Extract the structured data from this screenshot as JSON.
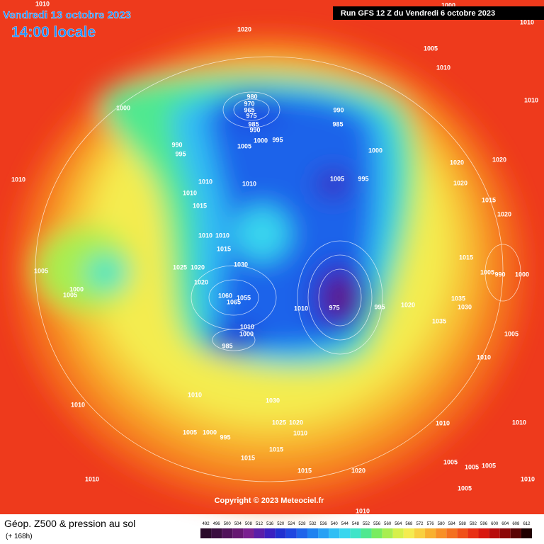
{
  "header": {
    "date": "Vendredi 13 octobre 2023",
    "time": "14:00 locale",
    "run": "Run GFS 12 Z du Vendredi 6 octobre 2023"
  },
  "copyright": "Copyright © 2023 Meteociel.fr",
  "footer": {
    "title": "Géop. Z500 & pression au sol",
    "lead": "(+ 168h)"
  },
  "colorbar": {
    "levels": [
      492,
      496,
      500,
      504,
      508,
      512,
      516,
      520,
      524,
      528,
      532,
      536,
      540,
      544,
      548,
      552,
      556,
      560,
      564,
      568,
      572,
      576,
      580,
      584,
      588,
      592,
      596,
      600,
      604,
      608,
      612
    ],
    "colors": [
      "#2a0a2a",
      "#3a0d3f",
      "#50125a",
      "#661872",
      "#7a2090",
      "#5a1ea8",
      "#3a20c0",
      "#2030d0",
      "#1e46e0",
      "#1e64ea",
      "#1e82f0",
      "#28a0f4",
      "#30bef4",
      "#38d6ee",
      "#40e4c8",
      "#50e890",
      "#78ec60",
      "#a8ee50",
      "#d6f04a",
      "#f4ec50",
      "#f8d040",
      "#f8b030",
      "#f89028",
      "#f47020",
      "#f05018",
      "#e83014",
      "#d81810",
      "#b80c0c",
      "#8c0808",
      "#5a0404",
      "#200000"
    ]
  },
  "isobar_labels": [
    1000,
    1020,
    1005,
    1010,
    1000,
    1010,
    980,
    970,
    965,
    975,
    985,
    990,
    1000,
    995,
    990,
    985,
    1005,
    1000,
    990,
    995,
    1010,
    1010,
    1010,
    1005,
    995,
    1020,
    1020,
    1020,
    1010,
    1015,
    1015,
    1020,
    1010,
    1010,
    1015,
    1015,
    1005,
    1025,
    1020,
    1030,
    1020,
    1005,
    990,
    1000,
    1000,
    1005,
    1055,
    1065,
    1060,
    1010,
    975,
    995,
    1020,
    1035,
    1030,
    1035,
    1010,
    1000,
    985,
    1005,
    1010,
    1010,
    1010,
    1030,
    1025,
    1020,
    1010,
    1005,
    1000,
    995,
    1010,
    1010,
    1015,
    1015,
    1005,
    1005,
    1005,
    1010,
    1015,
    1020,
    1005,
    1010,
    1010,
    1010,
    1010
  ]
}
